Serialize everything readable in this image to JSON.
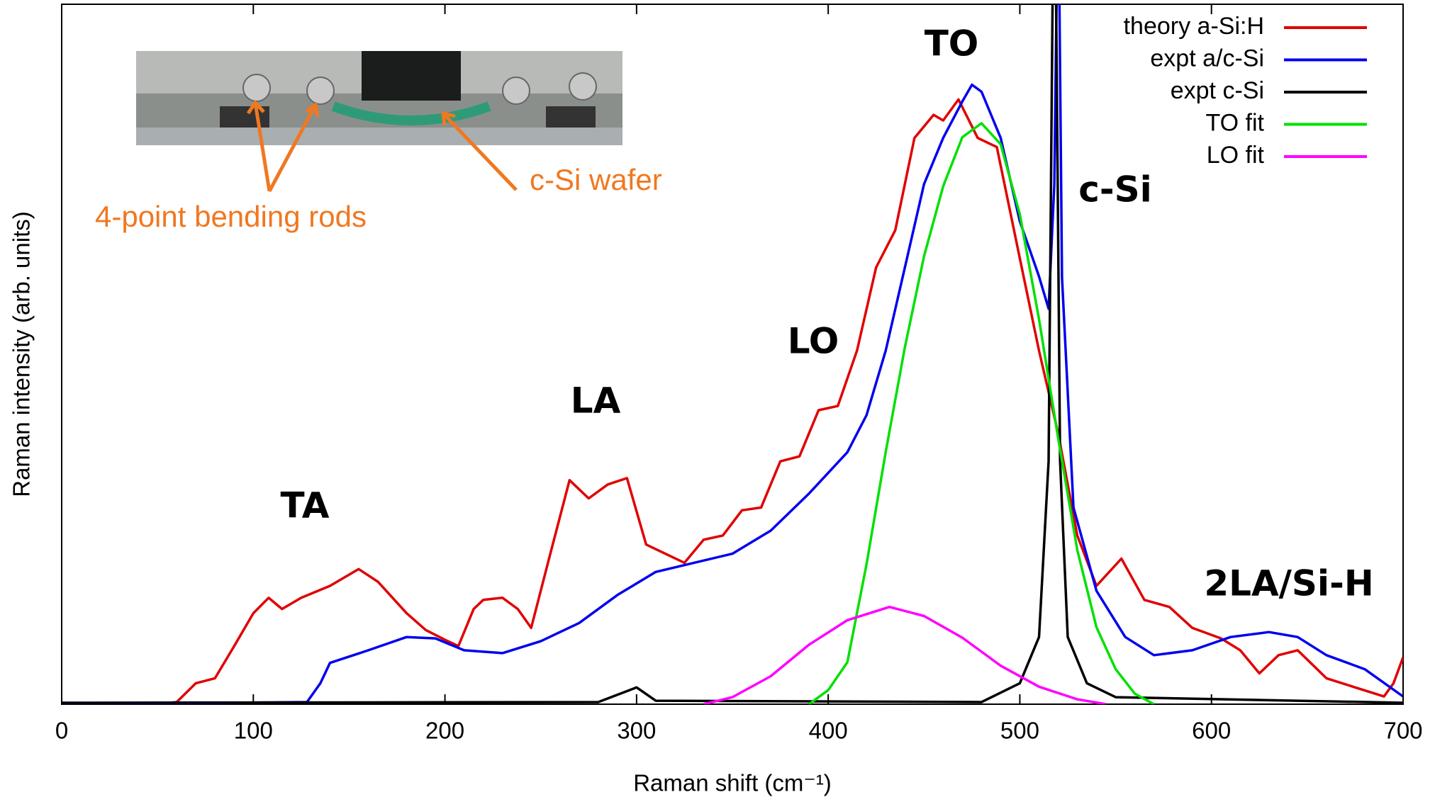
{
  "chart_data": {
    "type": "line",
    "xlabel": "Raman shift (cm⁻¹)",
    "ylabel": "Raman intensity (arb. units)",
    "xlim": [
      0,
      700
    ],
    "xticks": [
      0,
      100,
      200,
      300,
      400,
      500,
      600,
      700
    ],
    "ylim": [
      0,
      100
    ],
    "annotations": [
      "TA",
      "LA",
      "LO",
      "TO",
      "c-Si",
      "2LA/Si-H"
    ],
    "inset_labels": [
      "4-point bending rods",
      "c-Si wafer"
    ],
    "series": [
      {
        "name": "theory a-Si:H",
        "color": "#e00000",
        "x": [
          0,
          50,
          60,
          70,
          80,
          90,
          100,
          108,
          115,
          125,
          140,
          155,
          165,
          180,
          190,
          200,
          207,
          215,
          220,
          230,
          238,
          245,
          255,
          265,
          275,
          285,
          295,
          305,
          315,
          325,
          335,
          345,
          355,
          365,
          375,
          385,
          395,
          405,
          415,
          425,
          435,
          445,
          455,
          460,
          468,
          478,
          488,
          500,
          510,
          520,
          530,
          540,
          553,
          565,
          578,
          590,
          605,
          615,
          625,
          635,
          645,
          660,
          675,
          690,
          695,
          700
        ],
        "values": [
          0,
          0,
          0.3,
          3,
          3.7,
          8.3,
          13,
          15.2,
          13.6,
          15.2,
          16.9,
          19.3,
          17.5,
          13,
          10.6,
          9.2,
          8.3,
          13.6,
          14.9,
          15.2,
          13.6,
          10.9,
          21.5,
          32,
          29.4,
          31.4,
          32.3,
          22.8,
          21.5,
          20.2,
          23.5,
          24.1,
          27.7,
          28.1,
          34.7,
          35.4,
          42,
          42.6,
          50.5,
          62.4,
          67.7,
          80.9,
          84.2,
          83.4,
          86.4,
          80.9,
          79.6,
          63.7,
          50.5,
          38.7,
          24.1,
          16.9,
          20.8,
          14.9,
          13.9,
          10.9,
          9.4,
          7.7,
          4.4,
          7,
          7.7,
          3.7,
          2.4,
          1.1,
          3,
          6.7
        ]
      },
      {
        "name": "expt a/c-Si",
        "color": "#0000ee",
        "x": [
          0,
          128,
          135,
          140,
          160,
          180,
          195,
          210,
          230,
          250,
          270,
          290,
          310,
          330,
          350,
          370,
          390,
          410,
          420,
          430,
          440,
          450,
          460,
          470,
          475,
          480,
          490,
          500,
          510,
          515,
          518,
          520,
          522,
          528,
          540,
          555,
          570,
          590,
          610,
          630,
          645,
          660,
          680,
          700
        ],
        "values": [
          0,
          0.3,
          3,
          5.9,
          7.7,
          9.6,
          9.4,
          7.7,
          7.3,
          9,
          11.6,
          15.6,
          18.9,
          20.2,
          21.5,
          24.8,
          30.1,
          36,
          41.3,
          50.5,
          62.4,
          74.3,
          80.9,
          86.1,
          88.5,
          87.5,
          80.9,
          69,
          61.1,
          56.5,
          74.3,
          120,
          61,
          28.1,
          16.2,
          9.6,
          7,
          7.7,
          9.6,
          10.3,
          9.6,
          7,
          5,
          1.1
        ]
      },
      {
        "name": "expt c-Si",
        "color": "#000000",
        "x": [
          0,
          280,
          300,
          310,
          480,
          500,
          510,
          515,
          518,
          521,
          525,
          535,
          550,
          700
        ],
        "values": [
          0.2,
          0.3,
          2.4,
          0.5,
          0.3,
          3,
          9.6,
          34.7,
          130,
          34.7,
          9.6,
          3,
          1,
          0.2
        ]
      },
      {
        "name": "TO fit",
        "color": "#00e000",
        "x": [
          390,
          400,
          410,
          420,
          430,
          440,
          450,
          460,
          470,
          480,
          490,
          500,
          510,
          520,
          530,
          540,
          550,
          560,
          570
        ],
        "values": [
          0,
          2,
          6,
          20,
          36,
          51,
          64,
          74,
          81,
          83,
          80,
          70,
          55,
          38,
          22,
          11,
          5,
          1.5,
          0
        ]
      },
      {
        "name": "LO fit",
        "color": "#ff00ff",
        "x": [
          335,
          350,
          370,
          390,
          410,
          432,
          450,
          470,
          490,
          510,
          530,
          545
        ],
        "values": [
          0,
          1,
          4,
          8.5,
          12,
          13.9,
          12.6,
          9.5,
          5.5,
          2.5,
          0.7,
          0
        ]
      }
    ]
  }
}
